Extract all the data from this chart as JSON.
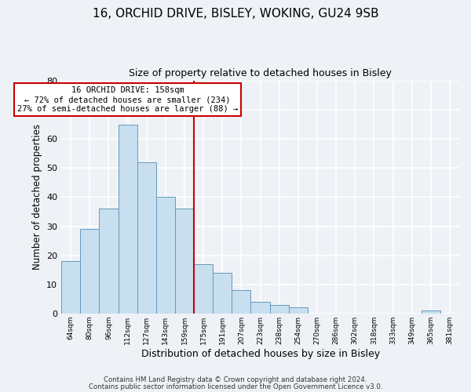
{
  "title": "16, ORCHID DRIVE, BISLEY, WOKING, GU24 9SB",
  "subtitle": "Size of property relative to detached houses in Bisley",
  "xlabel": "Distribution of detached houses by size in Bisley",
  "ylabel": "Number of detached properties",
  "bar_color": "#c8dff0",
  "bar_edge_color": "#6699bb",
  "background_color": "#eef2f7",
  "grid_color": "white",
  "bins": [
    "64sqm",
    "80sqm",
    "96sqm",
    "112sqm",
    "127sqm",
    "143sqm",
    "159sqm",
    "175sqm",
    "191sqm",
    "207sqm",
    "223sqm",
    "238sqm",
    "254sqm",
    "270sqm",
    "286sqm",
    "302sqm",
    "318sqm",
    "333sqm",
    "349sqm",
    "365sqm",
    "381sqm"
  ],
  "values": [
    18,
    29,
    36,
    65,
    52,
    40,
    36,
    17,
    14,
    8,
    4,
    3,
    2,
    0,
    0,
    0,
    0,
    0,
    0,
    1,
    0
  ],
  "ylim": [
    0,
    80
  ],
  "marker_bin_index": 6,
  "marker_color": "#cc0000",
  "annotation_title": "16 ORCHID DRIVE: 158sqm",
  "annotation_line1": "← 72% of detached houses are smaller (234)",
  "annotation_line2": "27% of semi-detached houses are larger (88) →",
  "annotation_box_color": "white",
  "annotation_box_edge": "#cc0000",
  "footer1": "Contains HM Land Registry data © Crown copyright and database right 2024.",
  "footer2": "Contains public sector information licensed under the Open Government Licence v3.0."
}
